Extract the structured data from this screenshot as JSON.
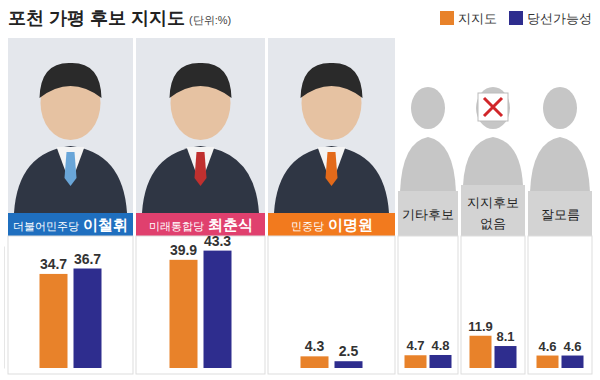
{
  "chart_data": {
    "type": "bar",
    "title": "포천 가평 후보 지지도",
    "subtitle": "(단위:%)",
    "categories": [
      "더불어민주당 이철휘",
      "미래통합당 최춘식",
      "민중당 이명원",
      "기타후보",
      "지지후보 없음",
      "잘모름"
    ],
    "series": [
      {
        "name": "지지도",
        "color": "#e8822a",
        "values": [
          34.7,
          39.9,
          4.3,
          4.7,
          11.9,
          4.6
        ]
      },
      {
        "name": "당선가능성",
        "color": "#2e2d8e",
        "values": [
          36.7,
          43.3,
          2.5,
          4.8,
          8.1,
          4.6
        ]
      }
    ],
    "ylim": [
      0,
      45
    ],
    "tick_labels": "x",
    "data_labels": true,
    "legend": "top-right"
  }
}
